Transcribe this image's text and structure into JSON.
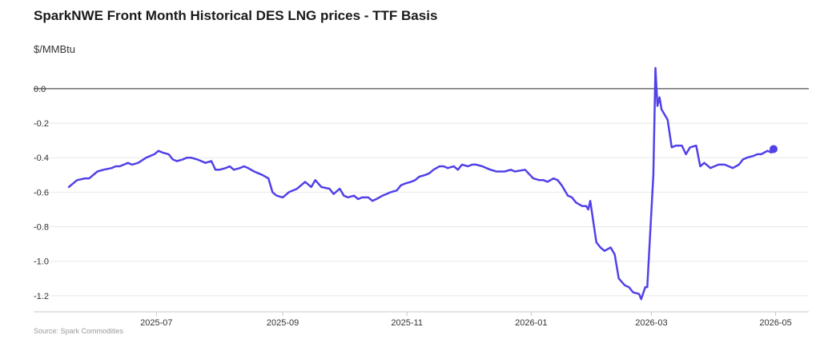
{
  "chart_data": {
    "type": "line",
    "title": "SparkNWE Front Month Historical DES LNG prices - TTF Basis",
    "ylabel": "$/MMBtu",
    "source": "Source: Spark Commodities",
    "ylim": [
      -1.27,
      0.12
    ],
    "y_ticks": [
      0.0,
      -0.2,
      -0.4,
      -0.6,
      -0.8,
      -1.0,
      -1.2
    ],
    "y_tick_labels": [
      "0.0",
      "-0.2",
      "-0.4",
      "-0.6",
      "-0.8",
      "-1.0",
      "-1.2"
    ],
    "x_ticks": [
      "2025-07",
      "2025-09",
      "2025-11",
      "2026-01",
      "2026-03",
      "2026-05"
    ],
    "grid": true,
    "zero_line": true,
    "line_color": "#5241e8",
    "series": [
      {
        "x": [
          "2025-05-19",
          "2025-05-21",
          "2025-05-23",
          "2025-05-27",
          "2025-05-29",
          "2025-06-02",
          "2025-06-05",
          "2025-06-09",
          "2025-06-11",
          "2025-06-13",
          "2025-06-17",
          "2025-06-19",
          "2025-06-22",
          "2025-06-26",
          "2025-06-30",
          "2025-07-02",
          "2025-07-04",
          "2025-07-07",
          "2025-07-09",
          "2025-07-11",
          "2025-07-14",
          "2025-07-16",
          "2025-07-18",
          "2025-07-21",
          "2025-07-23",
          "2025-07-25",
          "2025-07-28",
          "2025-07-30",
          "2025-08-01",
          "2025-08-04",
          "2025-08-06",
          "2025-08-08",
          "2025-08-11",
          "2025-08-13",
          "2025-08-15",
          "2025-08-18",
          "2025-08-20",
          "2025-08-22",
          "2025-08-25",
          "2025-08-27",
          "2025-08-29",
          "2025-09-01",
          "2025-09-04",
          "2025-09-08",
          "2025-09-10",
          "2025-09-12",
          "2025-09-15",
          "2025-09-17",
          "2025-09-20",
          "2025-09-24",
          "2025-09-26",
          "2025-09-29",
          "2025-10-01",
          "2025-10-03",
          "2025-10-06",
          "2025-10-08",
          "2025-10-10",
          "2025-10-13",
          "2025-10-15",
          "2025-10-17",
          "2025-10-20",
          "2025-10-22",
          "2025-10-24",
          "2025-10-27",
          "2025-10-29",
          "2025-10-31",
          "2025-11-03",
          "2025-11-05",
          "2025-11-07",
          "2025-11-10",
          "2025-11-12",
          "2025-11-14",
          "2025-11-17",
          "2025-11-19",
          "2025-11-21",
          "2025-11-24",
          "2025-11-26",
          "2025-11-28",
          "2025-12-01",
          "2025-12-03",
          "2025-12-05",
          "2025-12-08",
          "2025-12-10",
          "2025-12-12",
          "2025-12-15",
          "2025-12-17",
          "2025-12-19",
          "2025-12-22",
          "2025-12-24",
          "2025-12-29",
          "2026-01-02",
          "2026-01-05",
          "2026-01-07",
          "2026-01-09",
          "2026-01-12",
          "2026-01-14",
          "2026-01-16",
          "2026-01-19",
          "2026-01-21",
          "2026-01-23",
          "2026-01-26",
          "2026-01-28",
          "2026-01-29",
          "2026-01-30",
          "2026-02-02",
          "2026-02-04",
          "2026-02-06",
          "2026-02-09",
          "2026-02-11",
          "2026-02-13",
          "2026-02-16",
          "2026-02-18",
          "2026-02-20",
          "2026-02-23",
          "2026-02-24",
          "2026-02-26",
          "2026-02-27",
          "2026-03-02",
          "2026-03-03",
          "2026-03-04",
          "2026-03-05",
          "2026-03-06",
          "2026-03-09",
          "2026-03-11",
          "2026-03-13",
          "2026-03-16",
          "2026-03-18",
          "2026-03-20",
          "2026-03-23",
          "2026-03-25",
          "2026-03-27",
          "2026-03-30",
          "2026-04-01",
          "2026-04-03",
          "2026-04-06",
          "2026-04-08",
          "2026-04-10",
          "2026-04-13",
          "2026-04-15",
          "2026-04-17",
          "2026-04-20",
          "2026-04-22",
          "2026-04-24",
          "2026-04-27",
          "2026-04-29",
          "2026-04-30"
        ],
        "values": [
          -0.57,
          -0.55,
          -0.53,
          -0.52,
          -0.52,
          -0.48,
          -0.47,
          -0.46,
          -0.45,
          -0.45,
          -0.43,
          -0.44,
          -0.43,
          -0.4,
          -0.38,
          -0.36,
          -0.37,
          -0.38,
          -0.41,
          -0.42,
          -0.41,
          -0.4,
          -0.4,
          -0.41,
          -0.42,
          -0.43,
          -0.42,
          -0.47,
          -0.47,
          -0.46,
          -0.45,
          -0.47,
          -0.46,
          -0.45,
          -0.46,
          -0.48,
          -0.49,
          -0.5,
          -0.52,
          -0.6,
          -0.62,
          -0.63,
          -0.6,
          -0.58,
          -0.56,
          -0.54,
          -0.57,
          -0.53,
          -0.57,
          -0.58,
          -0.61,
          -0.58,
          -0.62,
          -0.63,
          -0.62,
          -0.64,
          -0.63,
          -0.63,
          -0.65,
          -0.64,
          -0.62,
          -0.61,
          -0.6,
          -0.59,
          -0.56,
          -0.55,
          -0.54,
          -0.53,
          -0.51,
          -0.5,
          -0.49,
          -0.47,
          -0.45,
          -0.45,
          -0.46,
          -0.45,
          -0.47,
          -0.44,
          -0.45,
          -0.44,
          -0.44,
          -0.45,
          -0.46,
          -0.47,
          -0.48,
          -0.48,
          -0.48,
          -0.47,
          -0.48,
          -0.47,
          -0.52,
          -0.53,
          -0.53,
          -0.54,
          -0.52,
          -0.53,
          -0.56,
          -0.62,
          -0.63,
          -0.66,
          -0.68,
          -0.68,
          -0.7,
          -0.65,
          -0.89,
          -0.92,
          -0.94,
          -0.92,
          -0.96,
          -1.1,
          -1.14,
          -1.15,
          -1.18,
          -1.19,
          -1.22,
          -1.15,
          -1.15,
          -0.5,
          0.12,
          -0.1,
          -0.05,
          -0.12,
          -0.18,
          -0.34,
          -0.33,
          -0.33,
          -0.38,
          -0.34,
          -0.33,
          -0.45,
          -0.43,
          -0.46,
          -0.45,
          -0.44,
          -0.44,
          -0.45,
          -0.46,
          -0.44,
          -0.41,
          -0.4,
          -0.39,
          -0.38,
          -0.38,
          -0.36,
          -0.37,
          -0.35
        ]
      }
    ]
  }
}
